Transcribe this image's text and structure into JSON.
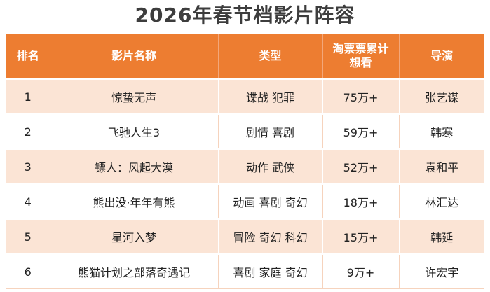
{
  "title": "2026年春节档影片阵容",
  "columns": {
    "rank": "排名",
    "film": "影片名称",
    "genre": "类型",
    "want": "淘票票累计想看",
    "director": "导演"
  },
  "rows": [
    {
      "rank": "1",
      "film": "惊蛰无声",
      "genre": "谍战 犯罪",
      "want": "75万+",
      "director": "张艺谋"
    },
    {
      "rank": "2",
      "film": "飞驰人生3",
      "genre": "剧情 喜剧",
      "want": "59万+",
      "director": "韩寒"
    },
    {
      "rank": "3",
      "film": "镖人：风起大漠",
      "genre": "动作 武侠",
      "want": "52万+",
      "director": "袁和平"
    },
    {
      "rank": "4",
      "film": "熊出没·年年有熊",
      "genre": "动画 喜剧 奇幻",
      "want": "18万+",
      "director": "林汇达"
    },
    {
      "rank": "5",
      "film": "星河入梦",
      "genre": "冒险 奇幻 科幻",
      "want": "15万+",
      "director": "韩延"
    },
    {
      "rank": "6",
      "film": "熊猫计划之部落奇遇记",
      "genre": "喜剧 家庭 奇幻",
      "want": "9万+",
      "director": "许宏宇"
    }
  ],
  "colors": {
    "header_bg": "#ed7d31",
    "band_bg": "#fbe4d5",
    "title_text": "#3d3d3d"
  }
}
